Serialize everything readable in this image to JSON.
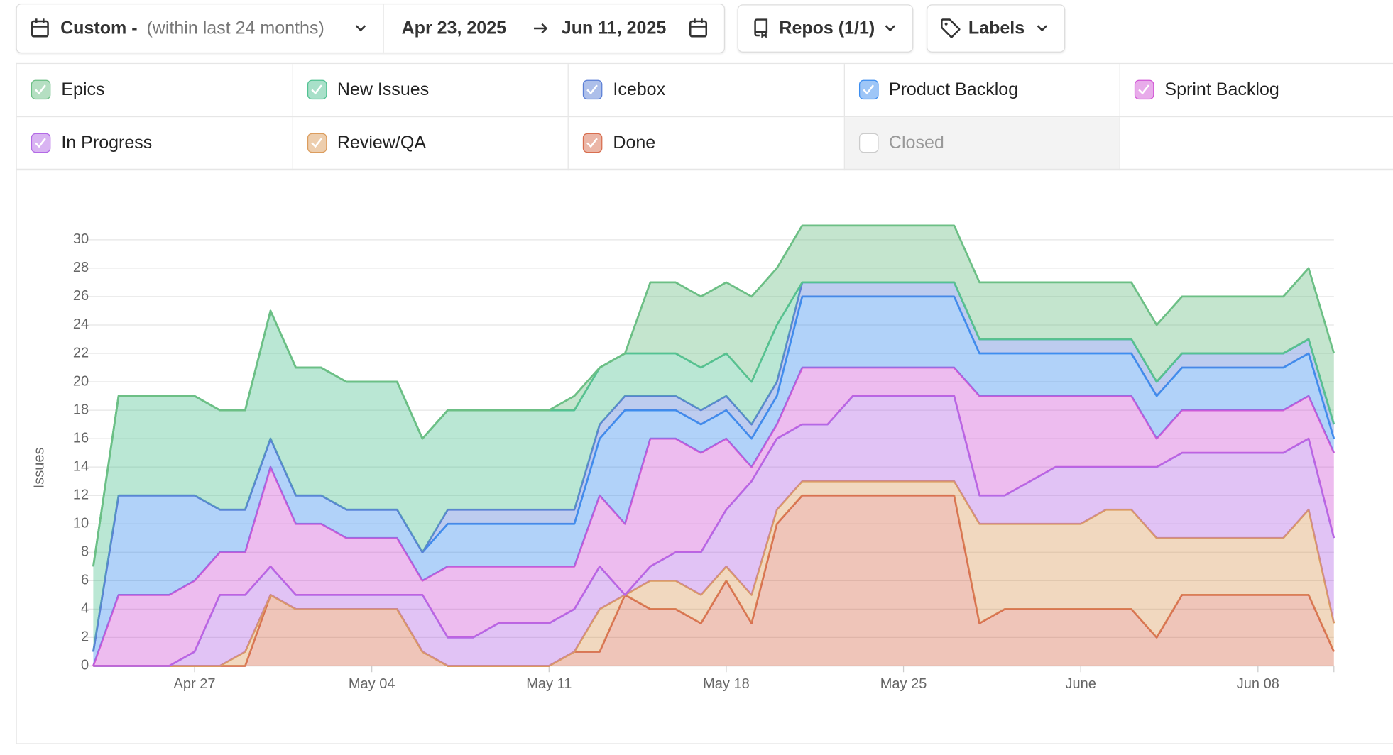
{
  "toolbar": {
    "range_label": "Custom -",
    "range_hint": "(within last 24 months)",
    "start_date": "Apr 23, 2025",
    "end_date": "Jun 11, 2025",
    "repos": "Repos (1/1)",
    "labels": "Labels"
  },
  "chart_data": {
    "type": "area",
    "stacked": true,
    "y_label": "Issues",
    "x": [
      "2025-04-23",
      "2025-04-24",
      "2025-04-25",
      "2025-04-26",
      "2025-04-27",
      "2025-04-28",
      "2025-04-29",
      "2025-04-30",
      "2025-05-01",
      "2025-05-02",
      "2025-05-03",
      "2025-05-04",
      "2025-05-05",
      "2025-05-06",
      "2025-05-07",
      "2025-05-08",
      "2025-05-09",
      "2025-05-10",
      "2025-05-11",
      "2025-05-12",
      "2025-05-13",
      "2025-05-14",
      "2025-05-15",
      "2025-05-16",
      "2025-05-17",
      "2025-05-18",
      "2025-05-19",
      "2025-05-20",
      "2025-05-21",
      "2025-05-22",
      "2025-05-23",
      "2025-05-24",
      "2025-05-25",
      "2025-05-26",
      "2025-05-27",
      "2025-05-28",
      "2025-05-29",
      "2025-05-30",
      "2025-05-31",
      "2025-06-01",
      "2025-06-02",
      "2025-06-03",
      "2025-06-04",
      "2025-06-05",
      "2025-06-06",
      "2025-06-07",
      "2025-06-08",
      "2025-06-09",
      "2025-06-10",
      "2025-06-11"
    ],
    "xlim": [
      "2025-04-23",
      "2025-06-11"
    ],
    "xticks": [
      {
        "value": "2025-04-27",
        "label": "Apr 27"
      },
      {
        "value": "2025-05-04",
        "label": "May 04"
      },
      {
        "value": "2025-05-11",
        "label": "May 11"
      },
      {
        "value": "2025-05-18",
        "label": "May 18"
      },
      {
        "value": "2025-05-25",
        "label": "May 25"
      },
      {
        "value": "2025-06-01",
        "label": "June"
      },
      {
        "value": "2025-06-08",
        "label": "Jun 08"
      }
    ],
    "ylim": [
      0,
      30
    ],
    "yticks": [
      0,
      2,
      4,
      6,
      8,
      10,
      12,
      14,
      16,
      18,
      20,
      22,
      24,
      26,
      28,
      30
    ],
    "grid": true,
    "series": [
      {
        "name": "Epics",
        "color": "#6cbf85",
        "values": [
          0,
          0,
          0,
          0,
          0,
          0,
          0,
          0,
          0,
          0,
          0,
          0,
          0,
          0,
          0,
          0,
          0,
          0,
          0,
          1,
          0,
          0,
          5,
          5,
          5,
          5,
          6,
          4,
          4,
          4,
          4,
          4,
          4,
          4,
          4,
          4,
          4,
          4,
          4,
          4,
          4,
          4,
          4,
          4,
          4,
          4,
          4,
          4,
          5,
          5
        ]
      },
      {
        "name": "New Issues",
        "color": "#52c293",
        "values": [
          6,
          7,
          7,
          7,
          7,
          7,
          7,
          9,
          9,
          9,
          9,
          9,
          9,
          8,
          7,
          7,
          7,
          7,
          7,
          7,
          4,
          3,
          3,
          3,
          3,
          3,
          3,
          4,
          0,
          0,
          0,
          0,
          0,
          0,
          0,
          0,
          0,
          0,
          0,
          0,
          0,
          0,
          0,
          0,
          0,
          0,
          0,
          0,
          0,
          0
        ]
      },
      {
        "name": "Icebox",
        "color": "#5b7fd6",
        "values": [
          0,
          0,
          0,
          0,
          0,
          0,
          0,
          0,
          0,
          0,
          0,
          0,
          0,
          0,
          1,
          1,
          1,
          1,
          1,
          1,
          1,
          1,
          1,
          1,
          1,
          1,
          1,
          1,
          1,
          1,
          1,
          1,
          1,
          1,
          1,
          1,
          1,
          1,
          1,
          1,
          1,
          1,
          1,
          1,
          1,
          1,
          1,
          1,
          1,
          1
        ]
      },
      {
        "name": "Product Backlog",
        "color": "#3d8ef0",
        "values": [
          1,
          7,
          7,
          7,
          6,
          3,
          3,
          2,
          2,
          2,
          2,
          2,
          2,
          2,
          3,
          3,
          3,
          3,
          3,
          3,
          4,
          8,
          2,
          2,
          2,
          2,
          2,
          2,
          5,
          5,
          5,
          5,
          5,
          5,
          5,
          3,
          3,
          3,
          3,
          3,
          3,
          3,
          3,
          3,
          3,
          3,
          3,
          3,
          3,
          1
        ]
      },
      {
        "name": "Sprint Backlog",
        "color": "#d257d6",
        "values": [
          0,
          5,
          5,
          5,
          5,
          3,
          3,
          7,
          5,
          5,
          4,
          4,
          4,
          1,
          5,
          5,
          4,
          4,
          4,
          3,
          5,
          5,
          9,
          8,
          7,
          5,
          1,
          1,
          4,
          4,
          2,
          2,
          2,
          2,
          2,
          7,
          7,
          6,
          5,
          5,
          5,
          5,
          2,
          3,
          3,
          3,
          3,
          3,
          3,
          6
        ]
      },
      {
        "name": "In Progress",
        "color": "#b36ae6",
        "values": [
          0,
          0,
          0,
          0,
          1,
          5,
          4,
          2,
          1,
          1,
          1,
          1,
          1,
          4,
          2,
          2,
          3,
          3,
          3,
          3,
          3,
          0,
          1,
          2,
          3,
          4,
          8,
          5,
          4,
          4,
          6,
          6,
          6,
          6,
          6,
          2,
          2,
          3,
          4,
          4,
          3,
          3,
          5,
          6,
          6,
          6,
          6,
          6,
          5,
          6
        ]
      },
      {
        "name": "Review/QA",
        "color": "#dc9d5e",
        "values": [
          0,
          0,
          0,
          0,
          0,
          0,
          1,
          0,
          0,
          0,
          0,
          0,
          0,
          0,
          0,
          0,
          0,
          0,
          0,
          0,
          3,
          0,
          2,
          2,
          2,
          1,
          2,
          1,
          1,
          1,
          1,
          1,
          1,
          1,
          1,
          7,
          6,
          6,
          6,
          6,
          7,
          7,
          7,
          4,
          4,
          4,
          4,
          4,
          6,
          2
        ]
      },
      {
        "name": "Done",
        "color": "#d86e4f",
        "values": [
          0,
          0,
          0,
          0,
          0,
          0,
          0,
          5,
          4,
          4,
          4,
          4,
          4,
          1,
          0,
          0,
          0,
          0,
          0,
          1,
          1,
          5,
          4,
          4,
          3,
          6,
          3,
          10,
          12,
          12,
          12,
          12,
          12,
          12,
          12,
          3,
          4,
          4,
          4,
          4,
          4,
          4,
          2,
          5,
          5,
          5,
          5,
          5,
          5,
          1
        ]
      }
    ],
    "hidden_series": [
      {
        "name": "Closed"
      }
    ]
  }
}
